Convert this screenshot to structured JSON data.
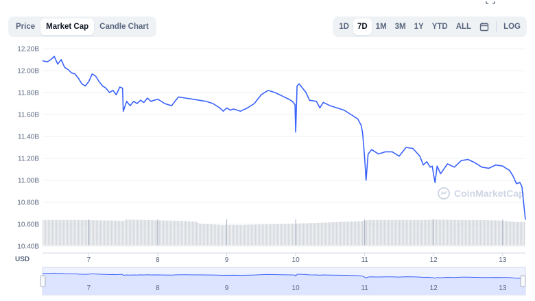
{
  "chart_tabs": [
    {
      "label": "Price",
      "active": false
    },
    {
      "label": "Market Cap",
      "active": true
    },
    {
      "label": "Candle Chart",
      "active": false
    }
  ],
  "range_tabs": [
    {
      "label": "1D",
      "active": false
    },
    {
      "label": "7D",
      "active": true
    },
    {
      "label": "1M",
      "active": false
    },
    {
      "label": "3M",
      "active": false
    },
    {
      "label": "1Y",
      "active": false
    },
    {
      "label": "YTD",
      "active": false
    },
    {
      "label": "ALL",
      "active": false
    }
  ],
  "log_label": "LOG",
  "calendar_icon": "calendar-icon",
  "watermark": "CoinMarketCap",
  "currency_label": "USD",
  "colors": {
    "line": "#3861fb",
    "volume": "#d6d9de",
    "grid": "#eff2f5",
    "navigator_fill": "#eef2ff",
    "watermark": "#cfd6e4"
  },
  "chart_data": {
    "type": "line",
    "ylabel": "",
    "y_ticks": [
      "12.20B",
      "12.00B",
      "11.80B",
      "11.60B",
      "11.40B",
      "11.20B",
      "11.00B",
      "10.80B",
      "10.60B",
      "10.40B"
    ],
    "x_ticks": [
      "7",
      "8",
      "9",
      "10",
      "11",
      "12",
      "13"
    ],
    "ylim": [
      10.4,
      12.2
    ],
    "xlim": [
      6.33,
      13.33
    ],
    "grid": true,
    "series": [
      {
        "x": [
          6.33,
          6.4,
          6.45,
          6.5,
          6.55,
          6.6,
          6.65,
          6.7,
          6.75,
          6.8,
          6.85,
          6.9,
          6.95,
          7.0,
          7.05,
          7.1,
          7.15,
          7.2,
          7.25,
          7.3,
          7.35,
          7.4,
          7.45,
          7.49,
          7.5,
          7.55,
          7.6,
          7.65,
          7.7,
          7.75,
          7.8,
          7.85,
          7.9,
          8.0,
          8.1,
          8.2,
          8.3,
          8.4,
          8.5,
          8.6,
          8.7,
          8.8,
          8.9,
          8.95,
          9.0,
          9.05,
          9.1,
          9.2,
          9.3,
          9.4,
          9.5,
          9.6,
          9.7,
          9.8,
          9.9,
          9.95,
          9.99,
          10.0,
          10.02,
          10.05,
          10.1,
          10.15,
          10.2,
          10.3,
          10.35,
          10.4,
          10.5,
          10.6,
          10.7,
          10.8,
          10.9,
          10.95,
          10.97,
          11.0,
          11.02,
          11.05,
          11.1,
          11.2,
          11.3,
          11.4,
          11.5,
          11.6,
          11.7,
          11.8,
          11.85,
          11.9,
          11.95,
          11.98,
          12.0,
          12.02,
          12.05,
          12.1,
          12.2,
          12.3,
          12.4,
          12.5,
          12.6,
          12.7,
          12.8,
          12.9,
          13.0,
          13.05,
          13.1,
          13.15,
          13.2,
          13.25,
          13.28,
          13.3,
          13.33
        ],
        "values": [
          12.09,
          12.08,
          12.1,
          12.13,
          12.06,
          12.1,
          12.03,
          12.01,
          11.98,
          11.97,
          11.93,
          11.88,
          11.86,
          11.9,
          11.97,
          11.95,
          11.9,
          11.86,
          11.84,
          11.8,
          11.82,
          11.78,
          11.85,
          11.84,
          11.63,
          11.72,
          11.68,
          11.72,
          11.7,
          11.73,
          11.71,
          11.75,
          11.72,
          11.74,
          11.7,
          11.68,
          11.76,
          11.75,
          11.74,
          11.73,
          11.72,
          11.7,
          11.66,
          11.63,
          11.66,
          11.64,
          11.65,
          11.63,
          11.66,
          11.7,
          11.78,
          11.82,
          11.8,
          11.77,
          11.74,
          11.72,
          11.69,
          11.44,
          11.86,
          11.88,
          11.84,
          11.8,
          11.73,
          11.72,
          11.66,
          11.71,
          11.68,
          11.66,
          11.64,
          11.6,
          11.56,
          11.5,
          11.43,
          11.2,
          11.0,
          11.24,
          11.28,
          11.24,
          11.26,
          11.26,
          11.22,
          11.3,
          11.29,
          11.22,
          11.14,
          11.17,
          11.12,
          11.13,
          11.05,
          10.98,
          11.13,
          11.06,
          11.15,
          11.12,
          11.18,
          11.19,
          11.16,
          11.12,
          11.11,
          11.14,
          11.13,
          11.11,
          11.09,
          11.04,
          10.97,
          10.98,
          10.94,
          10.82,
          10.64
        ]
      }
    ],
    "volume": {
      "x": [
        6.33,
        6.6,
        6.9,
        7.2,
        7.5,
        7.53,
        7.8,
        8.0,
        8.3,
        8.55,
        8.6,
        8.9,
        9.2,
        9.5,
        9.8,
        10.0,
        10.3,
        10.6,
        10.9,
        11.0,
        11.03,
        11.3,
        11.6,
        11.9,
        12.0,
        12.3,
        12.6,
        12.9,
        13.0,
        13.2,
        13.33
      ],
      "values": [
        0.62,
        0.62,
        0.62,
        0.61,
        0.6,
        0.63,
        0.62,
        0.61,
        0.6,
        0.58,
        0.53,
        0.5,
        0.5,
        0.51,
        0.52,
        0.53,
        0.55,
        0.57,
        0.59,
        0.6,
        0.62,
        0.62,
        0.62,
        0.62,
        0.63,
        0.62,
        0.62,
        0.61,
        0.6,
        0.57,
        0.57
      ]
    }
  }
}
